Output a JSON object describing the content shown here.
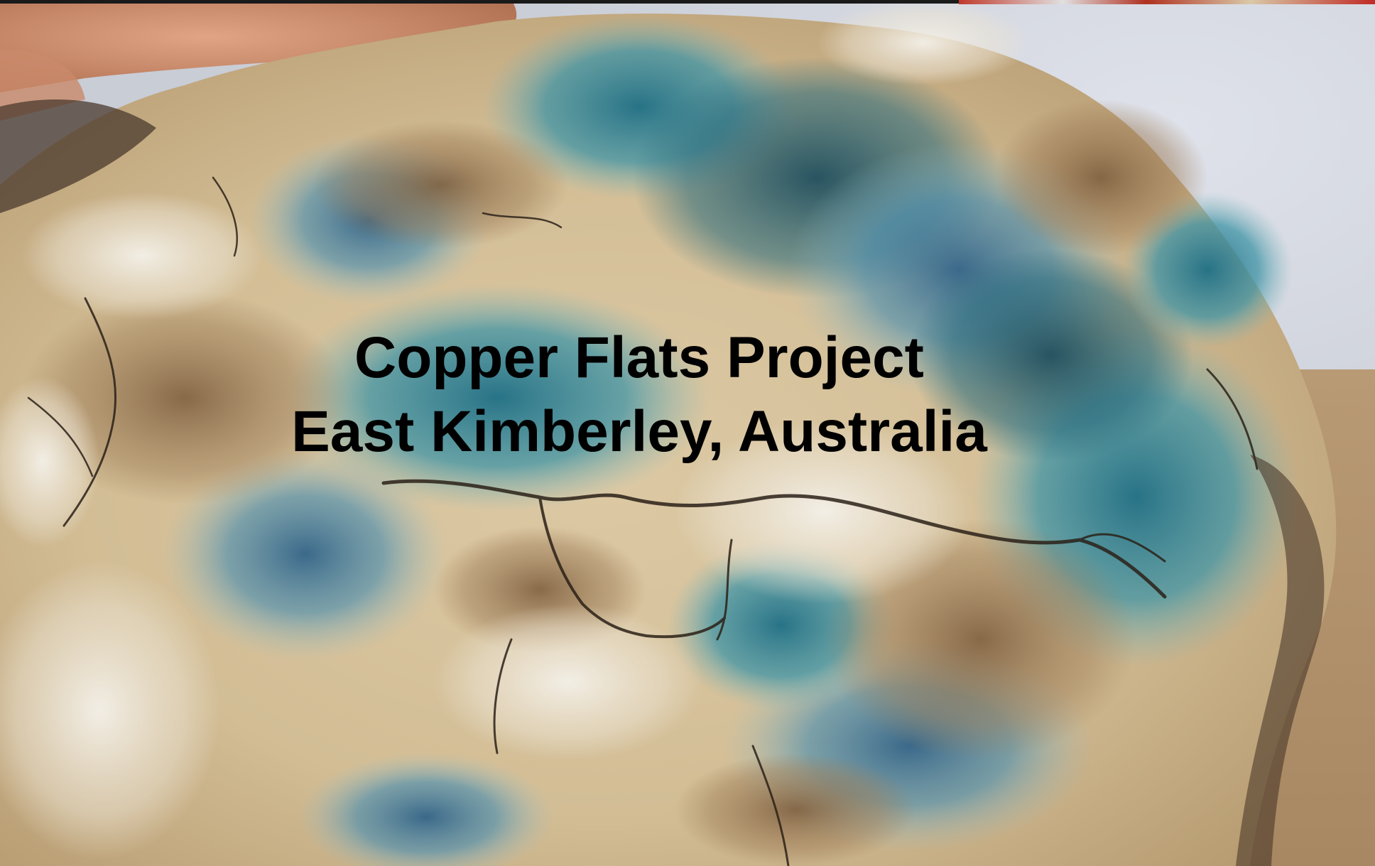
{
  "slide": {
    "title_line1": "Copper Flats Project",
    "title_line2": "East Kimberley, Australia"
  },
  "colors": {
    "title_text": "#000000",
    "copper_mineral_teal": "#2f8fa3",
    "host_rock_cream": "#e8dcc0",
    "iron_oxide_brown": "#8a6a44",
    "sky": "#d8dce4",
    "accent_red": "#c0392b"
  },
  "background_image": {
    "subject": "hand-held rock specimen with blue-green copper mineralisation"
  }
}
